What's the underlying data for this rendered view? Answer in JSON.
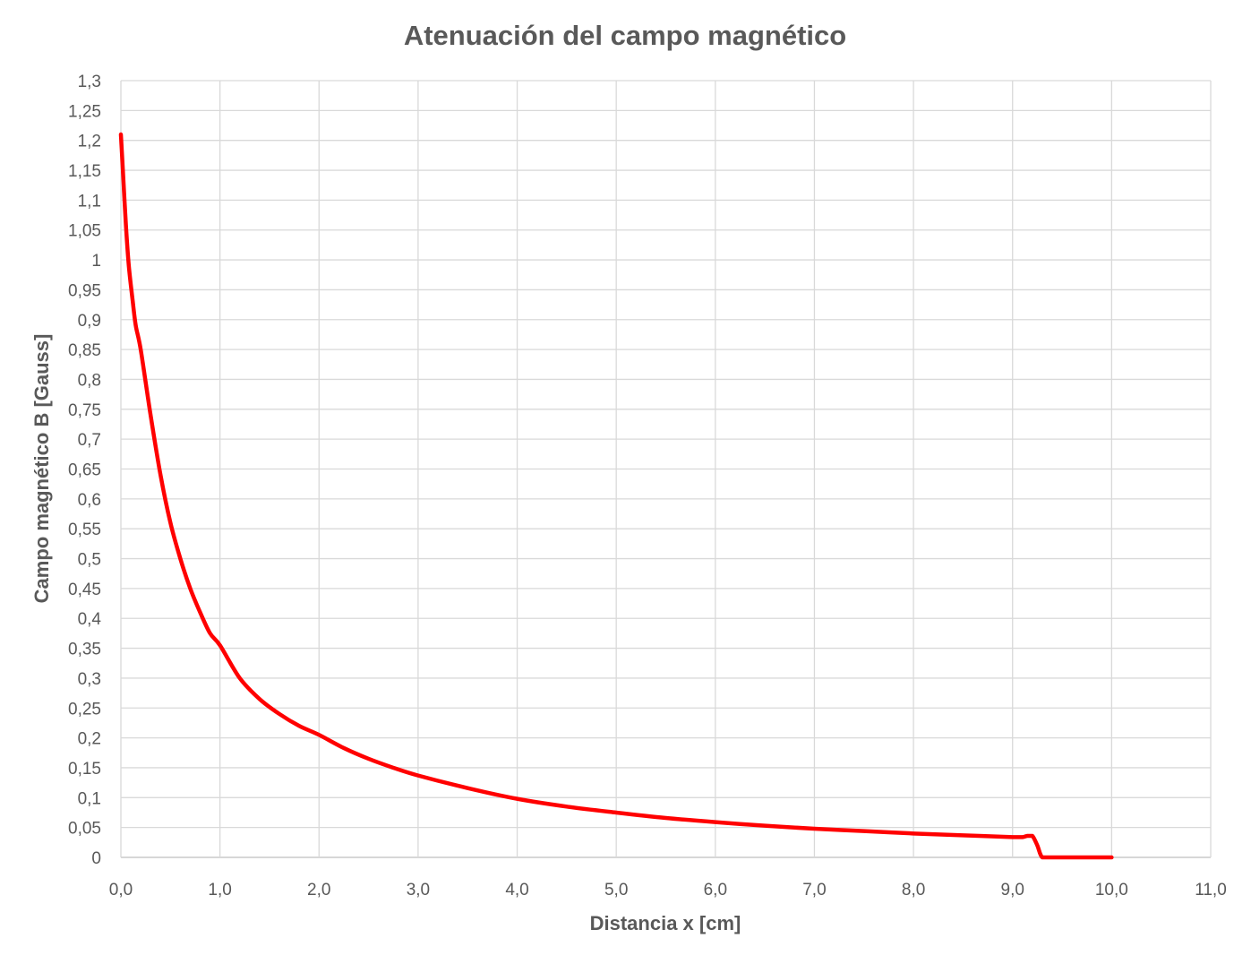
{
  "chart_data": {
    "type": "line",
    "title": "Atenuación del campo magnético",
    "xlabel": "Distancia x [cm]",
    "ylabel": "Campo magnético B [Gauss]",
    "xlim": [
      0,
      11
    ],
    "ylim": [
      0,
      1.3
    ],
    "x_ticks": [
      "0,0",
      "1,0",
      "2,0",
      "3,0",
      "4,0",
      "5,0",
      "6,0",
      "7,0",
      "8,0",
      "9,0",
      "10,0",
      "11,0"
    ],
    "y_ticks": [
      "0",
      "0,05",
      "0,1",
      "0,15",
      "0,2",
      "0,25",
      "0,3",
      "0,35",
      "0,4",
      "0,45",
      "0,5",
      "0,55",
      "0,6",
      "0,65",
      "0,7",
      "0,75",
      "0,8",
      "0,85",
      "0,9",
      "0,95",
      "1",
      "1,05",
      "1,1",
      "1,15",
      "1,2",
      "1,25",
      "1,3"
    ],
    "grid": true,
    "legend": "none",
    "colors": {
      "series": "#ff0000",
      "grid": "#d9d9d9",
      "text": "#595959"
    },
    "series": [
      {
        "name": "B",
        "x": [
          0.0,
          0.02,
          0.05,
          0.08,
          0.12,
          0.15,
          0.2,
          0.3,
          0.4,
          0.5,
          0.6,
          0.7,
          0.8,
          0.9,
          1.0,
          1.2,
          1.4,
          1.6,
          1.8,
          2.0,
          2.25,
          2.5,
          2.75,
          3.0,
          3.5,
          4.0,
          4.5,
          5.0,
          5.5,
          6.0,
          6.5,
          7.0,
          7.5,
          8.0,
          8.5,
          9.0,
          9.1,
          9.15,
          9.2,
          9.25,
          9.3,
          9.4,
          10.0
        ],
        "values": [
          1.21,
          1.15,
          1.06,
          0.99,
          0.93,
          0.89,
          0.85,
          0.74,
          0.64,
          0.56,
          0.5,
          0.45,
          0.41,
          0.375,
          0.355,
          0.3,
          0.265,
          0.24,
          0.22,
          0.205,
          0.183,
          0.165,
          0.15,
          0.137,
          0.116,
          0.098,
          0.085,
          0.075,
          0.066,
          0.059,
          0.053,
          0.048,
          0.044,
          0.04,
          0.037,
          0.034,
          0.034,
          0.036,
          0.036,
          0.02,
          0.0,
          0.0,
          0.0
        ]
      }
    ]
  }
}
